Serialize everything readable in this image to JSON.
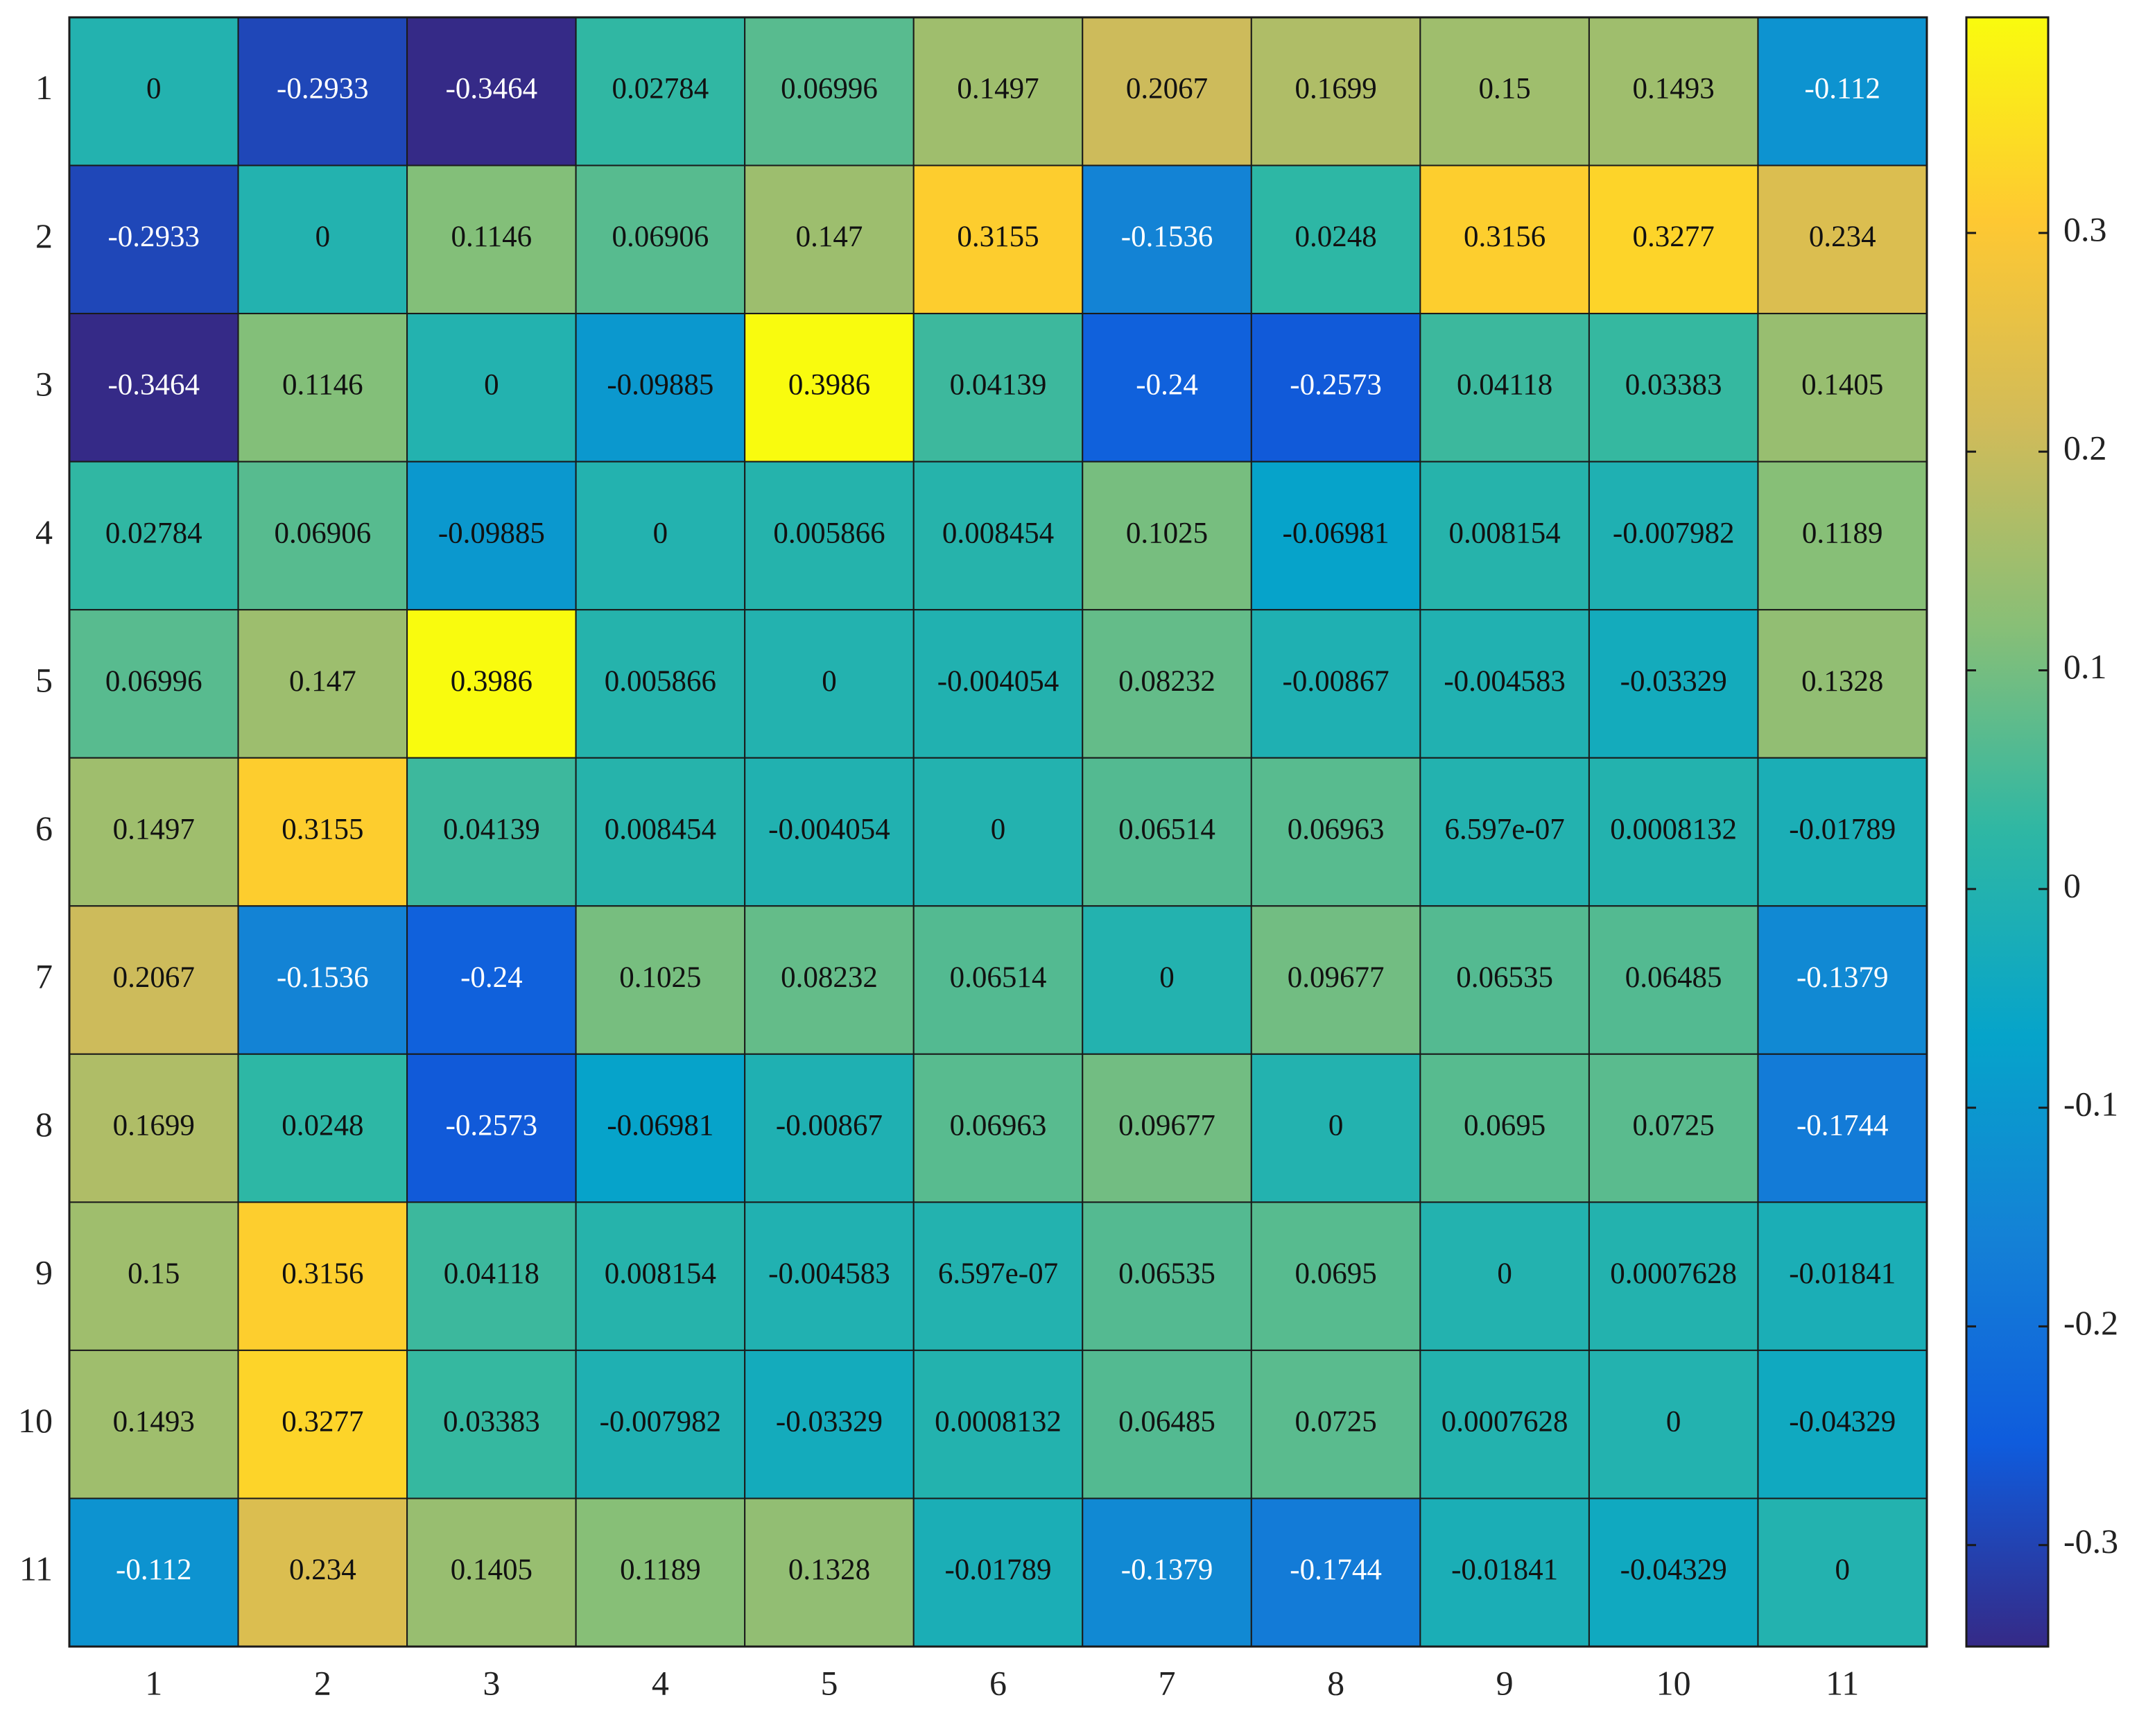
{
  "chart_data": {
    "type": "heatmap",
    "x": [
      1,
      2,
      3,
      4,
      5,
      6,
      7,
      8,
      9,
      10,
      11
    ],
    "y": [
      1,
      2,
      3,
      4,
      5,
      6,
      7,
      8,
      9,
      10,
      11
    ],
    "values": [
      [
        0,
        -0.2933,
        -0.3464,
        0.02784,
        0.06996,
        0.1497,
        0.2067,
        0.1699,
        0.15,
        0.1493,
        -0.112
      ],
      [
        -0.2933,
        0,
        0.1146,
        0.06906,
        0.147,
        0.3155,
        -0.1536,
        0.0248,
        0.3156,
        0.3277,
        0.234
      ],
      [
        -0.3464,
        0.1146,
        0,
        -0.09885,
        0.3986,
        0.04139,
        -0.24,
        -0.2573,
        0.04118,
        0.03383,
        0.1405
      ],
      [
        0.02784,
        0.06906,
        -0.09885,
        0,
        0.005866,
        0.008454,
        0.1025,
        -0.06981,
        0.008154,
        -0.007982,
        0.1189
      ],
      [
        0.06996,
        0.147,
        0.3986,
        0.005866,
        0,
        -0.004054,
        0.08232,
        -0.00867,
        -0.004583,
        -0.03329,
        0.1328
      ],
      [
        0.1497,
        0.3155,
        0.04139,
        0.008454,
        -0.004054,
        0,
        0.06514,
        0.06963,
        6.597e-07,
        0.0008132,
        -0.01789
      ],
      [
        0.2067,
        -0.1536,
        -0.24,
        0.1025,
        0.08232,
        0.06514,
        0,
        0.09677,
        0.06535,
        0.06485,
        -0.1379
      ],
      [
        0.1699,
        0.0248,
        -0.2573,
        -0.06981,
        -0.00867,
        0.06963,
        0.09677,
        0,
        0.0695,
        0.0725,
        -0.1744
      ],
      [
        0.15,
        0.3156,
        0.04118,
        0.008154,
        -0.004583,
        6.597e-07,
        0.06535,
        0.0695,
        0,
        0.0007628,
        -0.01841
      ],
      [
        0.1493,
        0.3277,
        0.03383,
        -0.007982,
        -0.03329,
        0.0008132,
        0.06485,
        0.0725,
        0.0007628,
        0,
        -0.04329
      ],
      [
        -0.112,
        0.234,
        0.1405,
        0.1189,
        0.1328,
        -0.01789,
        -0.1379,
        -0.1744,
        -0.01841,
        -0.04329,
        0
      ]
    ],
    "value_labels": [
      [
        "0",
        "-0.2933",
        "-0.3464",
        "0.02784",
        "0.06996",
        "0.1497",
        "0.2067",
        "0.1699",
        "0.15",
        "0.1493",
        "-0.112"
      ],
      [
        "-0.2933",
        "0",
        "0.1146",
        "0.06906",
        "0.147",
        "0.3155",
        "-0.1536",
        "0.0248",
        "0.3156",
        "0.3277",
        "0.234"
      ],
      [
        "-0.3464",
        "0.1146",
        "0",
        "-0.09885",
        "0.3986",
        "0.04139",
        "-0.24",
        "-0.2573",
        "0.04118",
        "0.03383",
        "0.1405"
      ],
      [
        "0.02784",
        "0.06906",
        "-0.09885",
        "0",
        "0.005866",
        "0.008454",
        "0.1025",
        "-0.06981",
        "0.008154",
        "-0.007982",
        "0.1189"
      ],
      [
        "0.06996",
        "0.147",
        "0.3986",
        "0.005866",
        "0",
        "-0.004054",
        "0.08232",
        "-0.00867",
        "-0.004583",
        "-0.03329",
        "0.1328"
      ],
      [
        "0.1497",
        "0.3155",
        "0.04139",
        "0.008454",
        "-0.004054",
        "0",
        "0.06514",
        "0.06963",
        "6.597e-07",
        "0.0008132",
        "-0.01789"
      ],
      [
        "0.2067",
        "-0.1536",
        "-0.24",
        "0.1025",
        "0.08232",
        "0.06514",
        "0",
        "0.09677",
        "0.06535",
        "0.06485",
        "-0.1379"
      ],
      [
        "0.1699",
        "0.0248",
        "-0.2573",
        "-0.06981",
        "-0.00867",
        "0.06963",
        "0.09677",
        "0",
        "0.0695",
        "0.0725",
        "-0.1744"
      ],
      [
        "0.15",
        "0.3156",
        "0.04118",
        "0.008154",
        "-0.004583",
        "6.597e-07",
        "0.06535",
        "0.0695",
        "0",
        "0.0007628",
        "-0.01841"
      ],
      [
        "0.1493",
        "0.3277",
        "0.03383",
        "-0.007982",
        "-0.03329",
        "0.0008132",
        "0.06485",
        "0.0725",
        "0.0007628",
        "0",
        "-0.04329"
      ],
      [
        "-0.112",
        "0.234",
        "0.1405",
        "0.1189",
        "0.1328",
        "-0.01789",
        "-0.1379",
        "-0.1744",
        "-0.01841",
        "-0.04329",
        "0"
      ]
    ],
    "clim": [
      -0.3464,
      0.3986
    ],
    "cticks": [
      -0.3,
      -0.2,
      -0.1,
      0,
      0.1,
      0.2,
      0.3
    ],
    "colormap": [
      "#352a87",
      "#0f5cdd",
      "#1481d6",
      "#06a4ca",
      "#2eb7a4",
      "#87bf77",
      "#d1bb59",
      "#fec832",
      "#f9fb0e"
    ]
  }
}
